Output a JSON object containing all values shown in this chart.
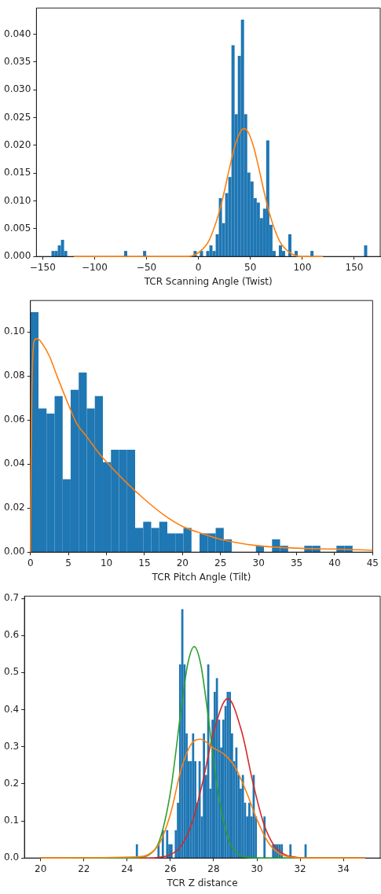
{
  "chart_data": [
    {
      "type": "histogram",
      "xlabel": "TCR Scanning Angle (Twist)",
      "xlim": [
        -156,
        175
      ],
      "xticks": [
        {
          "value": -150,
          "label": "−150"
        },
        {
          "value": -100,
          "label": "−100"
        },
        {
          "value": -50,
          "label": "−50"
        },
        0,
        50,
        100,
        150
      ],
      "ylim": [
        0,
        0.0447
      ],
      "yticks": [
        {
          "value": 0,
          "label": "0.000"
        },
        {
          "value": 0.005,
          "label": "0.005"
        },
        {
          "value": 0.01,
          "label": "0.010"
        },
        {
          "value": 0.015,
          "label": "0.015"
        },
        {
          "value": 0.02,
          "label": "0.020"
        },
        {
          "value": 0.025,
          "label": "0.025"
        },
        {
          "value": 0.03,
          "label": "0.030"
        },
        {
          "value": 0.035,
          "label": "0.035"
        },
        {
          "value": 0.04,
          "label": "0.040"
        }
      ],
      "grid": false,
      "legend": false,
      "marker": "none",
      "series": [
        {
          "type": "histogram",
          "color": "#1f77b4",
          "bins": [
            -141.5,
            -138.46,
            -135.42,
            -132.38,
            -129.34,
            -126.3,
            -71.58,
            -68.54,
            -53.34,
            -50.3,
            -4.7,
            -1.66,
            1.38,
            4.42,
            7.46,
            10.5,
            13.54,
            16.58,
            19.62,
            22.66,
            25.7,
            28.74,
            31.78,
            34.82,
            37.86,
            40.9,
            43.94,
            46.98,
            50.02,
            53.06,
            56.1,
            59.14,
            62.18,
            65.22,
            68.26,
            71.3,
            74.34,
            77.38,
            80.42,
            83.46,
            86.5,
            89.54,
            92.58,
            95.62,
            107.78,
            110.82,
            159.46,
            162.5
          ],
          "values": [
            0.001,
            0.001,
            0.002,
            0.003,
            0.001,
            0,
            0.001,
            0,
            0.001,
            0,
            0.001,
            0,
            0.001,
            0,
            0.001,
            0.002,
            0.001,
            0.004,
            0.0105,
            0.006,
            0.0114,
            0.0143,
            0.038,
            0.0256,
            0.0361,
            0.0426,
            0.0256,
            0.0151,
            0.0135,
            0.0105,
            0.0097,
            0.0069,
            0.0086,
            0.0209,
            0.0057,
            0.001,
            0,
            0.002,
            0.001,
            0,
            0.004,
            0,
            0.001,
            0,
            0.001,
            0,
            0.002
          ]
        },
        {
          "type": "line",
          "color": "#ff7f0e",
          "x": [
            -120,
            -40,
            -20,
            -10,
            0,
            10,
            20,
            25,
            30,
            35,
            40,
            44,
            48,
            53,
            58,
            63,
            68,
            78,
            88,
            98,
            110,
            120
          ],
          "values": [
            0,
            0,
            0,
            0,
            0.0007,
            0.0028,
            0.008,
            0.0118,
            0.016,
            0.0198,
            0.0223,
            0.023,
            0.0223,
            0.0198,
            0.016,
            0.0118,
            0.008,
            0.0028,
            0.0007,
            0,
            0,
            0
          ]
        }
      ]
    },
    {
      "type": "histogram",
      "xlabel": "TCR Pitch Angle (Tilt)",
      "xlim": [
        0,
        45
      ],
      "xticks": [
        0,
        5,
        10,
        15,
        20,
        25,
        30,
        35,
        40,
        45
      ],
      "ylim": [
        0,
        0.1143
      ],
      "yticks": [
        {
          "value": 0,
          "label": "0.00"
        },
        {
          "value": 0.02,
          "label": "0.02"
        },
        {
          "value": 0.04,
          "label": "0.04"
        },
        {
          "value": 0.06,
          "label": "0.06"
        },
        {
          "value": 0.08,
          "label": "0.08"
        },
        {
          "value": 0.1,
          "label": "0.10"
        }
      ],
      "grid": false,
      "legend": false,
      "marker": "none",
      "series": [
        {
          "type": "histogram",
          "color": "#1f77b4",
          "bins": [
            0,
            1.06,
            2.12,
            3.18,
            4.24,
            5.29,
            6.35,
            7.41,
            8.47,
            9.53,
            10.59,
            11.65,
            12.71,
            13.77,
            14.83,
            15.88,
            16.94,
            18.0,
            19.06,
            20.12,
            21.18,
            22.24,
            23.3,
            24.36,
            25.42,
            26.48,
            29.65,
            30.71,
            31.77,
            32.83,
            33.89,
            36.01,
            37.06,
            38.12,
            40.24,
            41.3,
            42.36
          ],
          "values": [
            0.109,
            0.0653,
            0.0629,
            0.0709,
            0.0331,
            0.0737,
            0.0816,
            0.0653,
            0.0709,
            0.0409,
            0.0465,
            0.0465,
            0.0465,
            0.011,
            0.0138,
            0.011,
            0.0138,
            0.0085,
            0.0085,
            0.011,
            0,
            0.0085,
            0.0085,
            0.011,
            0.0058,
            0,
            0.0029,
            0,
            0.0058,
            0.0029,
            0,
            0.0029,
            0.0029,
            0,
            0.0029,
            0.0029
          ]
        },
        {
          "type": "line",
          "color": "#ff7f0e",
          "x": [
            0,
            0.05,
            0.2,
            0.5,
            0.9,
            1.5,
            2.5,
            3.5,
            5,
            6,
            7.5,
            9,
            10,
            12.5,
            15,
            17.5,
            20,
            22.5,
            25,
            30,
            35,
            40,
            45
          ],
          "values": [
            0,
            0.03,
            0.075,
            0.096,
            0.097,
            0.095,
            0.089,
            0.08,
            0.067,
            0.059,
            0.052,
            0.045,
            0.041,
            0.032,
            0.024,
            0.017,
            0.0117,
            0.0085,
            0.0058,
            0.0029,
            0.0018,
            0.0014,
            0.0009
          ]
        }
      ]
    },
    {
      "type": "histogram",
      "xlabel": "TCR Z distance",
      "xlim": [
        19.25,
        35.7
      ],
      "xticks": [
        20,
        22,
        24,
        26,
        28,
        30,
        32,
        34
      ],
      "ylim": [
        0,
        0.706
      ],
      "yticks": [
        {
          "value": 0,
          "label": "0.0"
        },
        0.1,
        0.2,
        0.3,
        0.4,
        0.5,
        0.6,
        0.7
      ],
      "grid": false,
      "legend": false,
      "marker": "none",
      "series": [
        {
          "type": "histogram",
          "color": "#1f77b4",
          "bins": [
            24.4,
            24.5,
            25.4,
            25.5,
            25.6,
            25.7,
            25.8,
            25.9,
            26.0,
            26.1,
            26.2,
            26.3,
            26.4,
            26.5,
            26.6,
            26.7,
            26.8,
            26.9,
            27.0,
            27.1,
            27.2,
            27.3,
            27.4,
            27.5,
            27.6,
            27.7,
            27.8,
            27.9,
            28.0,
            28.1,
            28.2,
            28.3,
            28.4,
            28.5,
            28.6,
            28.7,
            28.8,
            28.9,
            29.0,
            29.1,
            29.2,
            29.3,
            29.4,
            29.5,
            29.6,
            29.7,
            29.8,
            29.9,
            30.0,
            30.3,
            30.4,
            30.7,
            30.8,
            30.9,
            31.0,
            31.1,
            31.2,
            31.5,
            31.6,
            32.2,
            32.3
          ],
          "values": [
            0.037,
            0,
            0.037,
            0,
            0.075,
            0,
            0.075,
            0.037,
            0.037,
            0,
            0.075,
            0.149,
            0.522,
            0.671,
            0.522,
            0.336,
            0.261,
            0.261,
            0.336,
            0.261,
            0.149,
            0.261,
            0.112,
            0.336,
            0.224,
            0.522,
            0.187,
            0.373,
            0.448,
            0.485,
            0.373,
            0.298,
            0.373,
            0.41,
            0.448,
            0.448,
            0.336,
            0.261,
            0.298,
            0.224,
            0.187,
            0.224,
            0.149,
            0.112,
            0.149,
            0.112,
            0.224,
            0.112,
            0,
            0.112,
            0,
            0.037,
            0.037,
            0.037,
            0.037,
            0.037,
            0,
            0.037,
            0,
            0.037
          ]
        },
        {
          "type": "line",
          "color": "#ff7f0e",
          "x": [
            20,
            24.5,
            25,
            25.5,
            26,
            26.5,
            27,
            27.4,
            28,
            28.5,
            29,
            29.5,
            30,
            30.5,
            31,
            31.5,
            32,
            35
          ],
          "values": [
            0,
            0.003,
            0.01,
            0.04,
            0.118,
            0.24,
            0.31,
            0.32,
            0.296,
            0.279,
            0.244,
            0.18,
            0.104,
            0.044,
            0.013,
            0.003,
            0,
            0
          ]
        },
        {
          "type": "line",
          "color": "#2ca02c",
          "x": [
            20,
            24,
            24.5,
            25,
            25.5,
            26,
            26.5,
            26.8,
            27.1,
            27.4,
            27.7,
            28.2,
            28.7,
            29.2,
            29.7,
            30.5,
            35
          ],
          "values": [
            0,
            0,
            0.001,
            0.008,
            0.048,
            0.177,
            0.403,
            0.523,
            0.57,
            0.523,
            0.403,
            0.177,
            0.048,
            0.008,
            0.001,
            0,
            0
          ]
        },
        {
          "type": "line",
          "color": "#d62728",
          "x": [
            20,
            25,
            25.5,
            26,
            26.5,
            27,
            27.5,
            28,
            28.65,
            29.3,
            29.8,
            30.3,
            30.8,
            31.3,
            31.8,
            32.3,
            35
          ],
          "values": [
            0,
            0,
            0.002,
            0.009,
            0.033,
            0.095,
            0.207,
            0.34,
            0.43,
            0.34,
            0.207,
            0.095,
            0.033,
            0.009,
            0.002,
            0,
            0
          ]
        }
      ]
    }
  ]
}
